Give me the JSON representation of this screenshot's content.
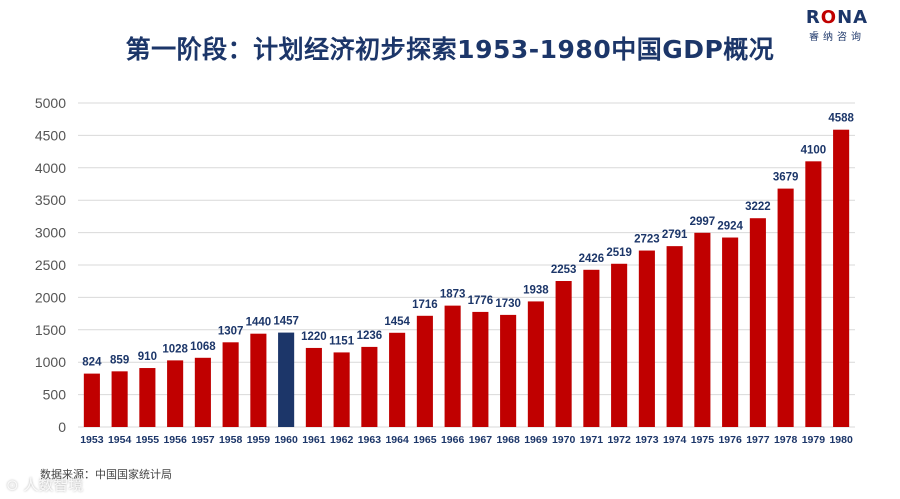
{
  "title": "第一阶段：计划经济初步探索1953-1980中国GDP概况",
  "logo": {
    "brand_prefix": "R",
    "brand_o": "O",
    "brand_suffix": "NA",
    "subtitle": "睿纳咨询"
  },
  "source": "数据来源：中国国家统计局",
  "watermark": "⊙ 人数智境",
  "colors": {
    "bar": "#c00000",
    "highlight": "#1c3669",
    "label": "#1c3669",
    "grid": "#d9d9d9",
    "axis_text": "#555555"
  },
  "chart_data": {
    "type": "bar",
    "categories": [
      "1953",
      "1954",
      "1955",
      "1956",
      "1957",
      "1958",
      "1959",
      "1960",
      "1961",
      "1962",
      "1963",
      "1964",
      "1965",
      "1966",
      "1967",
      "1968",
      "1969",
      "1970",
      "1971",
      "1972",
      "1973",
      "1974",
      "1975",
      "1976",
      "1977",
      "1978",
      "1979",
      "1980"
    ],
    "values": [
      824,
      859,
      910,
      1028,
      1068,
      1307,
      1440,
      1457,
      1220,
      1151,
      1236,
      1454,
      1716,
      1873,
      1776,
      1730,
      1938,
      2253,
      2426,
      2519,
      2723,
      2791,
      2997,
      2924,
      3222,
      3679,
      4100,
      4588
    ],
    "highlight_category": "1960",
    "ylim": [
      0,
      5000
    ],
    "yticks": [
      0,
      500,
      1000,
      1500,
      2000,
      2500,
      3000,
      3500,
      4000,
      4500,
      5000
    ],
    "grid": true,
    "legend": "none",
    "data_labels": true
  }
}
